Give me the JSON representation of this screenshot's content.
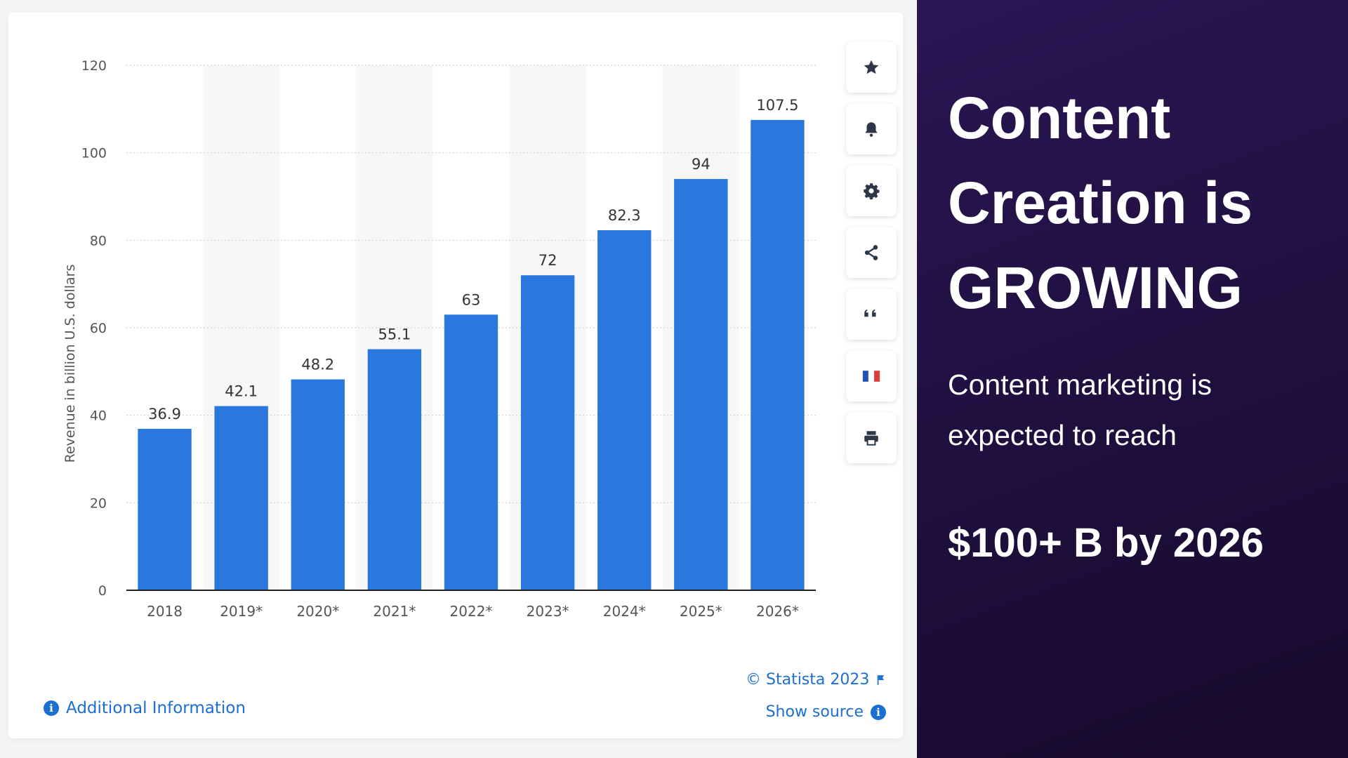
{
  "chart_data": {
    "type": "bar",
    "categories": [
      "2018",
      "2019*",
      "2020*",
      "2021*",
      "2022*",
      "2023*",
      "2024*",
      "2025*",
      "2026*"
    ],
    "values": [
      36.9,
      42.1,
      48.2,
      55.1,
      63,
      72,
      82.3,
      94,
      107.5
    ],
    "value_labels": [
      "36.9",
      "42.1",
      "48.2",
      "55.1",
      "63",
      "72",
      "82.3",
      "94",
      "107.5"
    ],
    "ylabel": "Revenue in billion U.S. dollars",
    "yticks": [
      0,
      20,
      40,
      60,
      80,
      100,
      120
    ],
    "ylim": [
      0,
      120
    ],
    "grid": true,
    "bar_color": "#2a78de"
  },
  "toolbar": {
    "buttons": [
      {
        "name": "star-icon"
      },
      {
        "name": "bell-icon"
      },
      {
        "name": "gear-icon"
      },
      {
        "name": "share-icon"
      },
      {
        "name": "quote-icon"
      },
      {
        "name": "french-flag-icon"
      },
      {
        "name": "print-icon"
      }
    ]
  },
  "footer": {
    "additional_info": "Additional Information",
    "copyright": "© Statista 2023",
    "show_source": "Show source"
  },
  "panel": {
    "headline_lines": [
      "Content",
      "Creation is",
      "GROWING"
    ],
    "subtext_lines": [
      "Content marketing is",
      "expected to reach"
    ],
    "big_stat": "$100+ B by 2026"
  },
  "colors": {
    "accent": "#1a6fd1",
    "bar": "#2a78de",
    "panel_background": "#221146"
  }
}
